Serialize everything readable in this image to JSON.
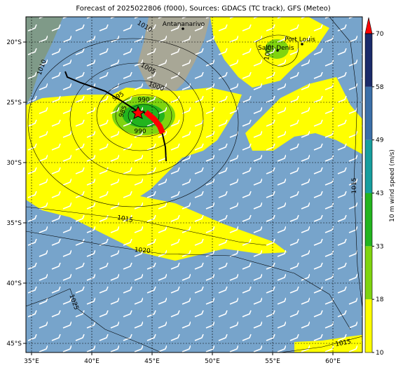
{
  "title": "Forecast of 2025022806 (f000), Sources: GDACS (TC track), GFS (Meteo)",
  "map": {
    "xticks": [
      {
        "value": 35,
        "label": "35°E"
      },
      {
        "value": 40,
        "label": "40°E"
      },
      {
        "value": 45,
        "label": "45°E"
      },
      {
        "value": 50,
        "label": "50°E"
      },
      {
        "value": 55,
        "label": "55°E"
      },
      {
        "value": 60,
        "label": "60°E"
      }
    ],
    "yticks": [
      {
        "value": -20,
        "label": "20°S"
      },
      {
        "value": -25,
        "label": "25°S"
      },
      {
        "value": -30,
        "label": "30°S"
      },
      {
        "value": -35,
        "label": "35°S"
      },
      {
        "value": -40,
        "label": "40°S"
      },
      {
        "value": -45,
        "label": "45°S"
      }
    ],
    "places": [
      "Antananarivo",
      "Port Louis",
      "Saint-Denis"
    ],
    "isobar_labels": [
      1010,
      1010,
      1005,
      1000,
      995,
      985,
      990,
      990,
      1005,
      1015,
      1015,
      1020,
      1025,
      1015
    ]
  },
  "colorbar": {
    "label": "10 m wind speed (m/s)",
    "ticks": [
      10,
      18,
      33,
      43,
      49,
      58,
      70
    ],
    "colors": [
      "#ffff00",
      "#7fd40f",
      "#22b41e",
      "#169e9e",
      "#3b6fa8",
      "#1a2a6a"
    ],
    "extend_color": "#ff0000"
  }
}
